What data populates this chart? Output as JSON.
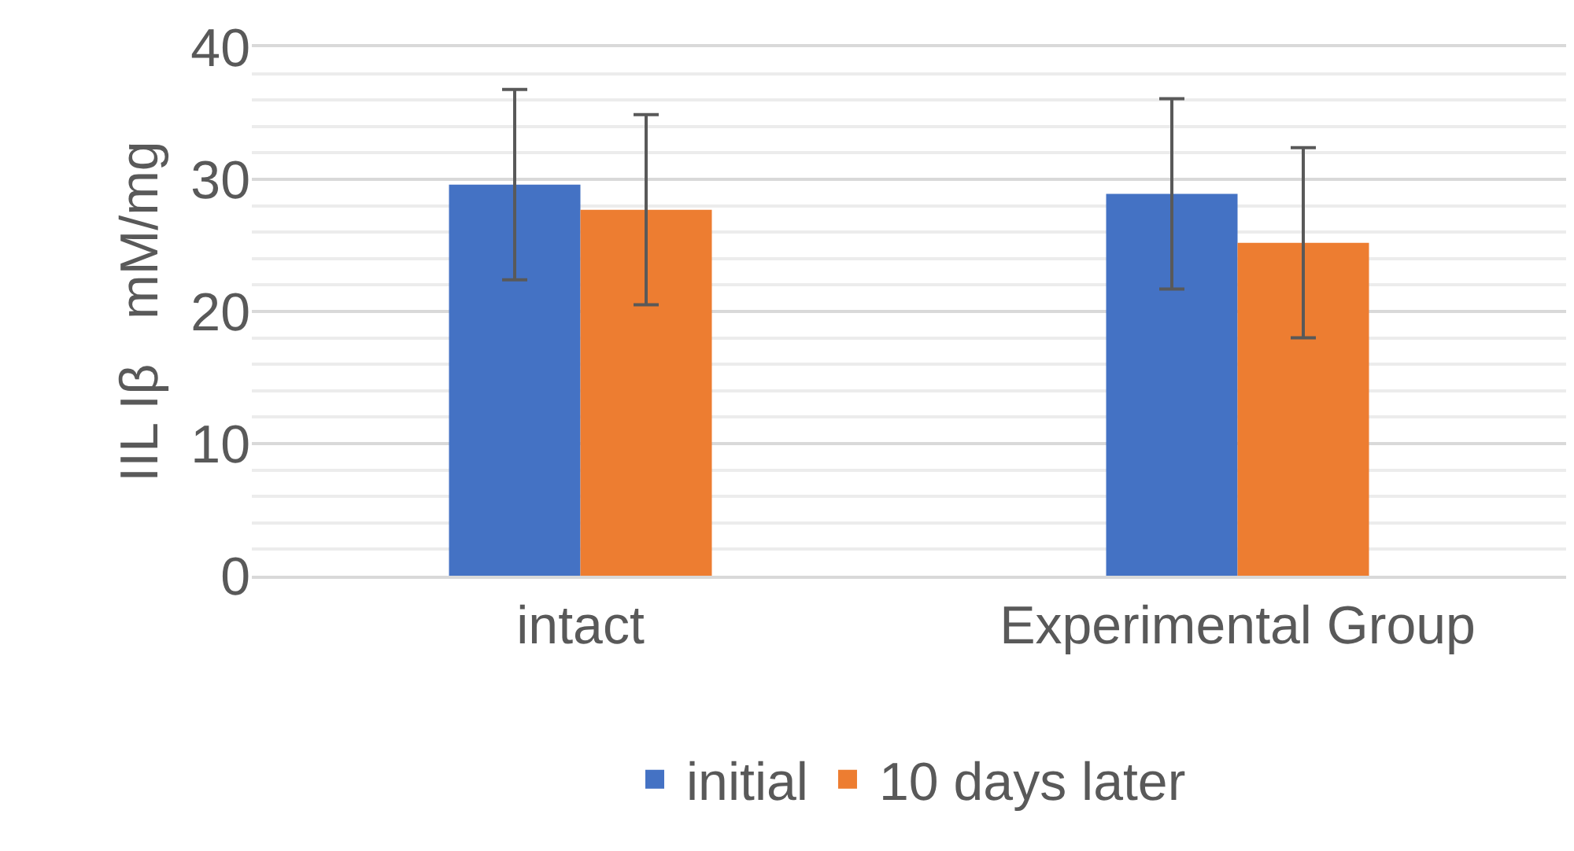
{
  "chart_data": {
    "type": "bar",
    "ylabel": "IIL Iβ   mM/mg",
    "categories": [
      "intact",
      "Experimental Group"
    ],
    "series": [
      {
        "name": "initial",
        "color": "#4472c4",
        "values": [
          29.6,
          28.9
        ],
        "errors": [
          7.2,
          7.2
        ]
      },
      {
        "name": "10 days later",
        "color": "#ed7d31",
        "values": [
          27.7,
          25.2
        ],
        "errors": [
          7.2,
          7.2
        ]
      }
    ],
    "ylim": [
      0,
      40
    ],
    "yticks": [
      0,
      10,
      20,
      30,
      40
    ],
    "grid": "y",
    "legend": "bottom"
  }
}
